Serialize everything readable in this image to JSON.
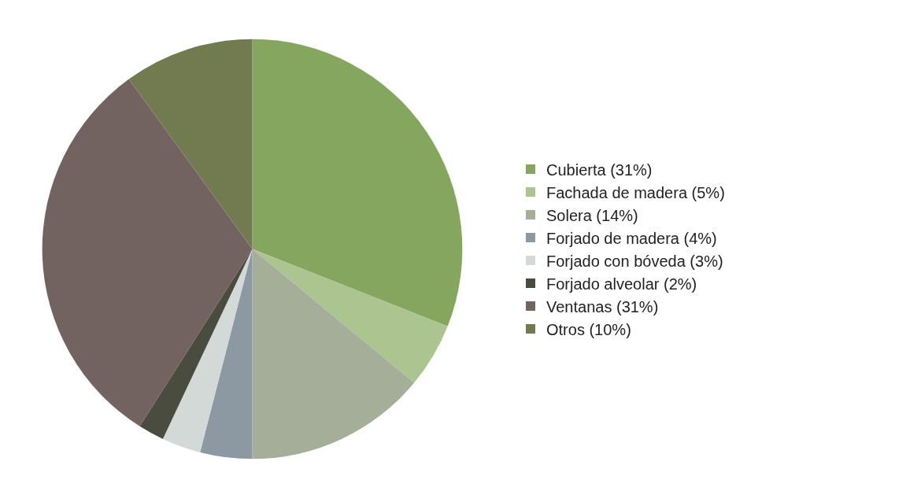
{
  "chart_data": {
    "type": "pie",
    "categories": [
      "Cubierta (31%)",
      "Fachada de madera (5%)",
      "Solera (14%)",
      "Forjado de madera (4%)",
      "Forjado con bóveda (3%)",
      "Forjado alveolar (2%)",
      "Ventanas (31%)",
      "Otros (10%)"
    ],
    "values": [
      31,
      5,
      14,
      4,
      3,
      2,
      31,
      10
    ],
    "colors": [
      "#84a65e",
      "#abc490",
      "#a4ae98",
      "#8c98a2",
      "#d3d9d7",
      "#4a4c40",
      "#726360",
      "#727a50"
    ],
    "legend": "right"
  }
}
